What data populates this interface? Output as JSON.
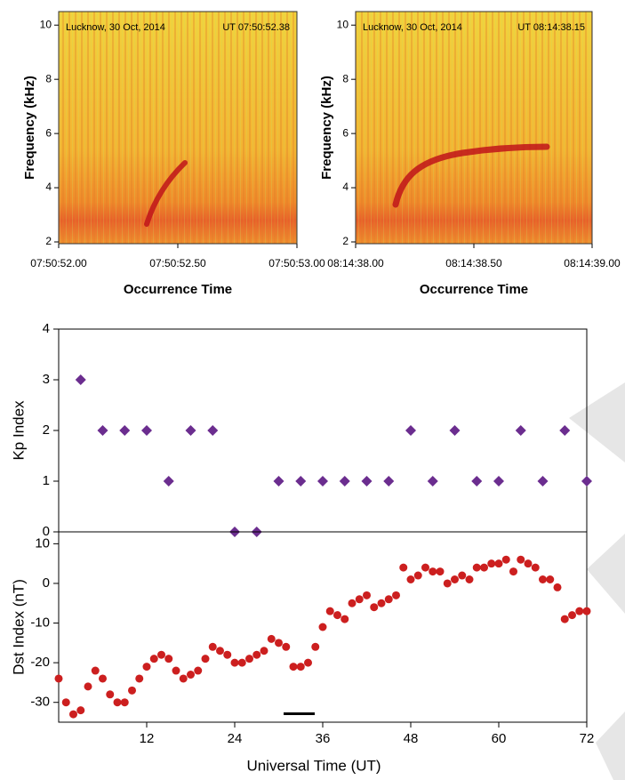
{
  "chart_data": [
    {
      "type": "spectrogram",
      "annotations": [
        "Lucknow, 30 Oct, 2014",
        "UT 07:50:52.38"
      ],
      "y_label": "Frequency (kHz)",
      "x_label": "Occurrence Time",
      "ylim": [
        2,
        10.5
      ],
      "yticks": [
        2,
        4,
        6,
        8,
        10
      ],
      "xticks": [
        "07:50:52.00",
        "07:50:52.50",
        "07:50:53.00"
      ]
    },
    {
      "type": "spectrogram",
      "annotations": [
        "Lucknow, 30 Oct, 2014",
        "UT 08:14:38.15"
      ],
      "y_label": "Frequency (kHz)",
      "x_label": "Occurrence Time",
      "ylim": [
        2,
        10.5
      ],
      "yticks": [
        2,
        4,
        6,
        8,
        10
      ],
      "xticks": [
        "08:14:38.00",
        "08:14:38.50",
        "08:14:39.00"
      ]
    },
    {
      "type": "scatter",
      "y_label": "Kp Index",
      "marker": "diamond",
      "color": "#6b2d8f",
      "xlim": [
        0,
        72
      ],
      "ylim": [
        0,
        4
      ],
      "yticks": [
        0,
        1,
        2,
        3,
        4
      ],
      "x": [
        3,
        6,
        9,
        12,
        15,
        18,
        21,
        24,
        27,
        30,
        33,
        36,
        39,
        42,
        45,
        48,
        51,
        54,
        57,
        60,
        63,
        66,
        69,
        72
      ],
      "values": [
        3,
        2,
        2,
        2,
        1,
        2,
        2,
        0,
        0,
        1,
        1,
        1,
        1,
        1,
        1,
        2,
        1,
        2,
        1,
        1,
        2,
        1,
        2,
        1
      ]
    },
    {
      "type": "scatter",
      "y_label": "Dst Index (nT)",
      "x_label": "Universal Time (UT)",
      "marker": "circle",
      "color": "#cc1f1f",
      "xlim": [
        0,
        72
      ],
      "ylim": [
        -35,
        13
      ],
      "yticks": [
        10,
        0,
        -10,
        -20,
        -30
      ],
      "xticks": [
        12,
        24,
        36,
        48,
        60,
        72
      ],
      "x": [
        0,
        1,
        2,
        3,
        4,
        5,
        6,
        7,
        8,
        9,
        10,
        11,
        12,
        13,
        14,
        15,
        16,
        17,
        18,
        19,
        20,
        21,
        22,
        23,
        24,
        25,
        26,
        27,
        28,
        29,
        30,
        31,
        32,
        33,
        34,
        35,
        36,
        37,
        38,
        39,
        40,
        41,
        42,
        43,
        44,
        45,
        46,
        47,
        48,
        49,
        50,
        51,
        52,
        53,
        54,
        55,
        56,
        57,
        58,
        59,
        60,
        61,
        62,
        63,
        64,
        65,
        66,
        67,
        68,
        69,
        70,
        71,
        72
      ],
      "values": [
        -24,
        -30,
        -33,
        -32,
        -26,
        -22,
        -24,
        -28,
        -30,
        -30,
        -27,
        -24,
        -21,
        -19,
        -18,
        -19,
        -22,
        -24,
        -23,
        -22,
        -19,
        -16,
        -17,
        -18,
        -20,
        -20,
        -19,
        -18,
        -17,
        -14,
        -15,
        -16,
        -21,
        -21,
        -20,
        -16,
        -11,
        -7,
        -8,
        -9,
        -5,
        -4,
        -3,
        -6,
        -5,
        -4,
        -3,
        4,
        1,
        2,
        4,
        3,
        3,
        0,
        1,
        2,
        1,
        4,
        4,
        5,
        5,
        6,
        3,
        6,
        5,
        4,
        1,
        1,
        -1,
        -9,
        -8,
        -7,
        -7
      ]
    }
  ]
}
